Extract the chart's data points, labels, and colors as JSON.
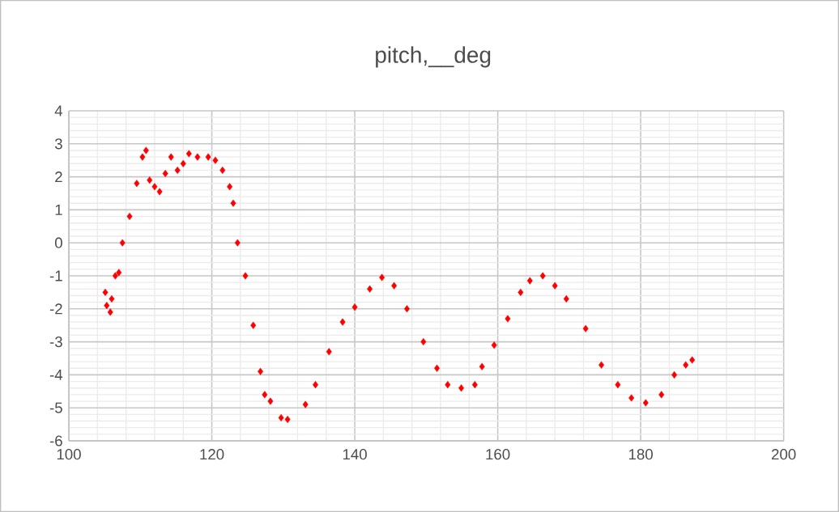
{
  "chart_data": {
    "type": "scatter",
    "title": "pitch,__deg",
    "x": [
      105.1,
      105.3,
      105.8,
      106.0,
      106.5,
      107.0,
      107.5,
      108.5,
      109.5,
      110.3,
      110.8,
      111.3,
      112.0,
      112.7,
      113.5,
      114.3,
      115.2,
      116.0,
      116.8,
      118.0,
      119.5,
      120.5,
      121.5,
      122.5,
      123.0,
      123.6,
      124.7,
      125.8,
      126.8,
      127.4,
      128.2,
      129.7,
      130.6,
      133.1,
      134.5,
      136.4,
      138.3,
      140.0,
      142.1,
      143.8,
      145.5,
      147.3,
      149.6,
      151.5,
      153.0,
      154.9,
      156.8,
      157.8,
      159.5,
      161.4,
      163.2,
      164.5,
      166.3,
      168.0,
      169.6,
      172.3,
      174.5,
      176.8,
      178.7,
      180.7,
      182.9,
      184.7,
      186.3,
      187.2
    ],
    "values": [
      -1.5,
      -1.9,
      -2.1,
      -1.7,
      -1.0,
      -0.9,
      0.0,
      0.8,
      1.8,
      2.6,
      2.8,
      1.9,
      1.7,
      1.55,
      2.1,
      2.6,
      2.2,
      2.4,
      2.7,
      2.6,
      2.6,
      2.5,
      2.2,
      1.7,
      1.2,
      0.0,
      -1.0,
      -2.5,
      -3.9,
      -4.6,
      -4.8,
      -5.3,
      -5.35,
      -4.9,
      -4.3,
      -3.3,
      -2.4,
      -1.95,
      -1.4,
      -1.05,
      -1.3,
      -2.0,
      -3.0,
      -3.8,
      -4.3,
      -4.4,
      -4.3,
      -3.75,
      -3.1,
      -2.3,
      -1.5,
      -1.15,
      -1.0,
      -1.3,
      -1.7,
      -2.6,
      -3.7,
      -4.3,
      -4.7,
      -4.85,
      -4.6,
      -4.0,
      -3.7,
      -3.55
    ],
    "color": "#ff0000",
    "marker": "diamond",
    "grid": true,
    "xlim": [
      100,
      200
    ],
    "xticks": [
      100,
      120,
      140,
      160,
      180,
      200
    ],
    "ylim": [
      -6,
      4
    ],
    "yticks": [
      -6,
      -5,
      -4,
      -3,
      -2,
      -1,
      0,
      1,
      2,
      3,
      4
    ]
  }
}
